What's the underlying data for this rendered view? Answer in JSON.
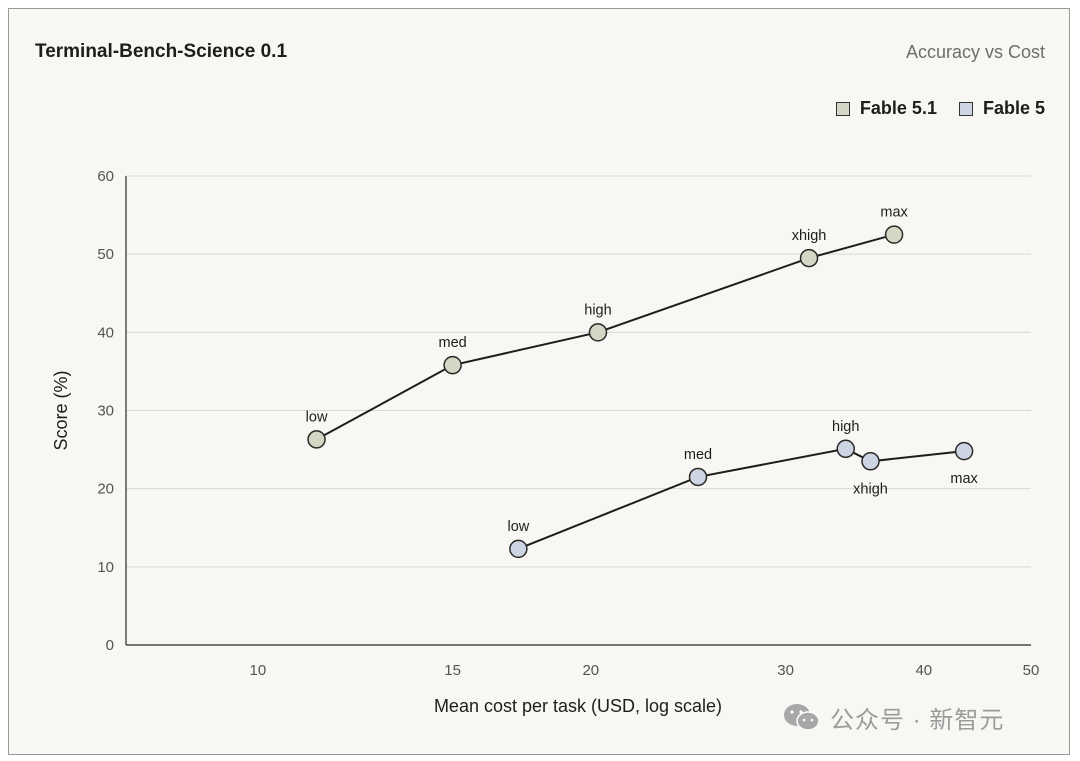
{
  "chart_data": {
    "type": "line",
    "title": "Terminal-Bench-Science 0.1",
    "subtitle": "Accuracy vs Cost",
    "xlabel": "Mean cost per task (USD, log scale)",
    "ylabel": "Score (%)",
    "x_scale": "log",
    "xlim": [
      7.6,
      50
    ],
    "ylim": [
      0,
      60
    ],
    "x_ticks": [
      10,
      15,
      20,
      30,
      40,
      50
    ],
    "y_ticks": [
      0,
      10,
      20,
      30,
      40,
      50,
      60
    ],
    "grid": "horizontal",
    "legend_position": "top-right",
    "series": [
      {
        "name": "Fable 5.1",
        "color": "#d3d8c4",
        "points": [
          {
            "label": "low",
            "x": 11.3,
            "y": 26.3
          },
          {
            "label": "med",
            "x": 15.0,
            "y": 35.8
          },
          {
            "label": "high",
            "x": 20.3,
            "y": 40.0
          },
          {
            "label": "xhigh",
            "x": 31.5,
            "y": 49.5
          },
          {
            "label": "max",
            "x": 37.6,
            "y": 52.5
          }
        ]
      },
      {
        "name": "Fable 5",
        "color": "#cdd4e2",
        "points": [
          {
            "label": "low",
            "x": 17.2,
            "y": 12.3
          },
          {
            "label": "med",
            "x": 25.0,
            "y": 21.5
          },
          {
            "label": "high",
            "x": 34.0,
            "y": 25.1
          },
          {
            "label": "xhigh",
            "x": 35.8,
            "y": 23.5
          },
          {
            "label": "max",
            "x": 43.5,
            "y": 24.8
          }
        ]
      }
    ]
  },
  "watermark": {
    "text": "公众号 · 新智元",
    "icon": "wechat-icon"
  }
}
